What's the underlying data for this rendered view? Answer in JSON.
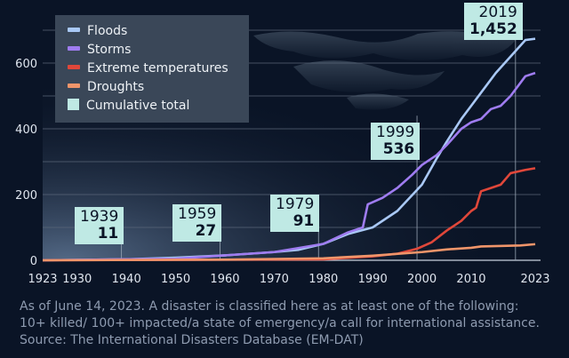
{
  "chart_data": {
    "type": "line",
    "xlim": [
      1923,
      2023
    ],
    "ylim": [
      0,
      700
    ],
    "grid": true,
    "legend_placement": "top-left",
    "x_ticks": [
      "1923",
      "1930",
      "1940",
      "1950",
      "1960",
      "1970",
      "1980",
      "1990",
      "2000",
      "2010",
      "2023"
    ],
    "y_ticks": [
      "0",
      "200",
      "400",
      "600"
    ],
    "series": [
      {
        "name": "Floods",
        "color": "#a9c8f5",
        "points": [
          [
            1923,
            0
          ],
          [
            1940,
            3
          ],
          [
            1950,
            8
          ],
          [
            1960,
            15
          ],
          [
            1970,
            25
          ],
          [
            1975,
            32
          ],
          [
            1980,
            50
          ],
          [
            1985,
            80
          ],
          [
            1990,
            100
          ],
          [
            1995,
            150
          ],
          [
            2000,
            230
          ],
          [
            2003,
            310
          ],
          [
            2005,
            360
          ],
          [
            2008,
            430
          ],
          [
            2010,
            470
          ],
          [
            2012,
            510
          ],
          [
            2015,
            570
          ],
          [
            2018,
            620
          ],
          [
            2021,
            670
          ],
          [
            2023,
            674
          ]
        ]
      },
      {
        "name": "Storms",
        "color": "#9f7cf0",
        "points": [
          [
            1923,
            0
          ],
          [
            1950,
            5
          ],
          [
            1970,
            25
          ],
          [
            1980,
            50
          ],
          [
            1985,
            85
          ],
          [
            1988,
            100
          ],
          [
            1989,
            170
          ],
          [
            1992,
            190
          ],
          [
            1995,
            220
          ],
          [
            1998,
            260
          ],
          [
            2000,
            290
          ],
          [
            2003,
            320
          ],
          [
            2005,
            350
          ],
          [
            2008,
            400
          ],
          [
            2010,
            420
          ],
          [
            2012,
            430
          ],
          [
            2014,
            460
          ],
          [
            2016,
            470
          ],
          [
            2018,
            500
          ],
          [
            2021,
            560
          ],
          [
            2023,
            570
          ]
        ]
      },
      {
        "name": "Extreme temperatures",
        "color": "#e0473a",
        "points": [
          [
            1923,
            0
          ],
          [
            1980,
            3
          ],
          [
            1990,
            12
          ],
          [
            1995,
            20
          ],
          [
            1999,
            35
          ],
          [
            2002,
            55
          ],
          [
            2005,
            90
          ],
          [
            2008,
            120
          ],
          [
            2010,
            150
          ],
          [
            2011,
            160
          ],
          [
            2012,
            210
          ],
          [
            2014,
            220
          ],
          [
            2016,
            230
          ],
          [
            2018,
            265
          ],
          [
            2021,
            275
          ],
          [
            2023,
            280
          ]
        ]
      },
      {
        "name": "Droughts",
        "color": "#f0956a",
        "points": [
          [
            1923,
            0
          ],
          [
            1960,
            2
          ],
          [
            1980,
            6
          ],
          [
            1990,
            14
          ],
          [
            2000,
            25
          ],
          [
            2005,
            33
          ],
          [
            2010,
            38
          ],
          [
            2012,
            42
          ],
          [
            2020,
            45
          ],
          [
            2023,
            49
          ]
        ]
      }
    ],
    "cumulative_total_label": "Cumulative total",
    "cumulative_total_color": "#bfe9e4",
    "annotations": [
      {
        "year": "1939",
        "value": "11"
      },
      {
        "year": "1959",
        "value": "27"
      },
      {
        "year": "1979",
        "value": "91"
      },
      {
        "year": "1999",
        "value": "536"
      },
      {
        "year": "2019",
        "value": "1,452"
      }
    ]
  },
  "footer": {
    "note_line1": "As of June 14, 2023. A disaster is classified here as at least one of the following:",
    "note_line2": "10+ killed/ 100+ impacted/a state of emergency/a call for international assistance.",
    "source": "Source: The International Disasters Database (EM-DAT)"
  }
}
